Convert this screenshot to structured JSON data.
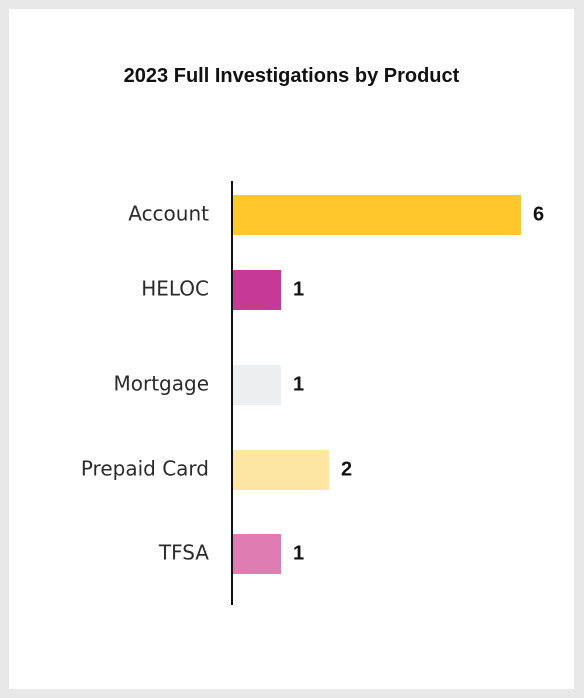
{
  "chart_data": {
    "type": "bar",
    "orientation": "horizontal",
    "title": "2023 Full Investigations by Product",
    "xlabel": "",
    "ylabel": "",
    "categories": [
      "Account",
      "HELOC",
      "Mortgage",
      "Prepaid Card",
      "TFSA"
    ],
    "values": [
      6,
      1,
      1,
      2,
      1
    ],
    "colors": [
      "#ffc72c",
      "#c63a96",
      "#eceef0",
      "#fde5a4",
      "#df7cb1"
    ],
    "xlim": [
      0,
      6
    ],
    "grid": false,
    "legend": "none",
    "data_labels": true
  }
}
